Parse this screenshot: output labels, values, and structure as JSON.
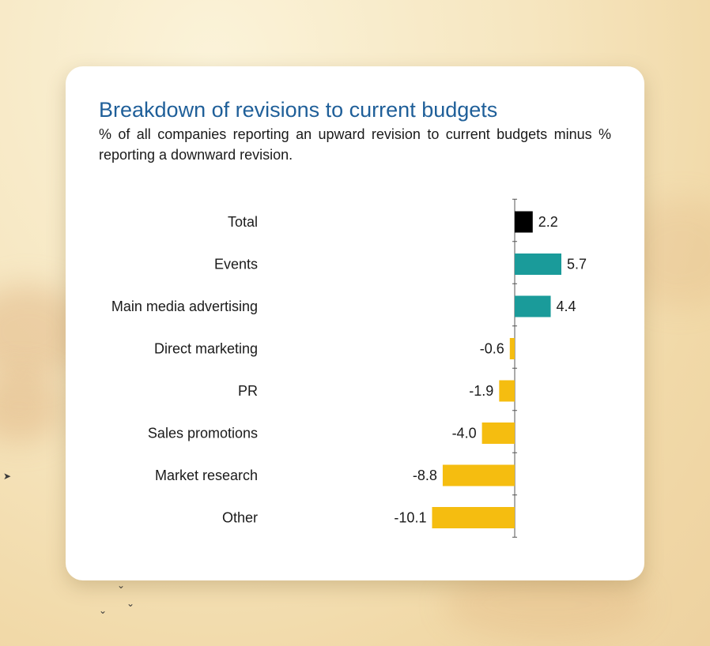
{
  "chart_data": {
    "type": "bar",
    "orientation": "horizontal",
    "title": "Breakdown of revisions to current budgets",
    "subtitle": "% of all companies reporting an upward revision to current budgets minus % reporting a downward revision.",
    "categories": [
      "Total",
      "Events",
      "Main media advertising",
      "Direct marketing",
      "PR",
      "Sales promotions",
      "Market research",
      "Other"
    ],
    "values": [
      2.2,
      5.7,
      4.4,
      -0.6,
      -1.9,
      -4.0,
      -8.8,
      -10.1
    ],
    "value_labels": [
      "2.2",
      "5.7",
      "4.4",
      "-0.6",
      "-1.9",
      "-4.0",
      "-8.8",
      "-10.1"
    ],
    "xlim": [
      -12,
      8
    ],
    "grid": false,
    "legend": "none",
    "colors": {
      "total": "#000000",
      "positive": "#1a9b9a",
      "negative": "#f5bd10",
      "axis": "#555555",
      "title": "#1f5f99"
    }
  }
}
